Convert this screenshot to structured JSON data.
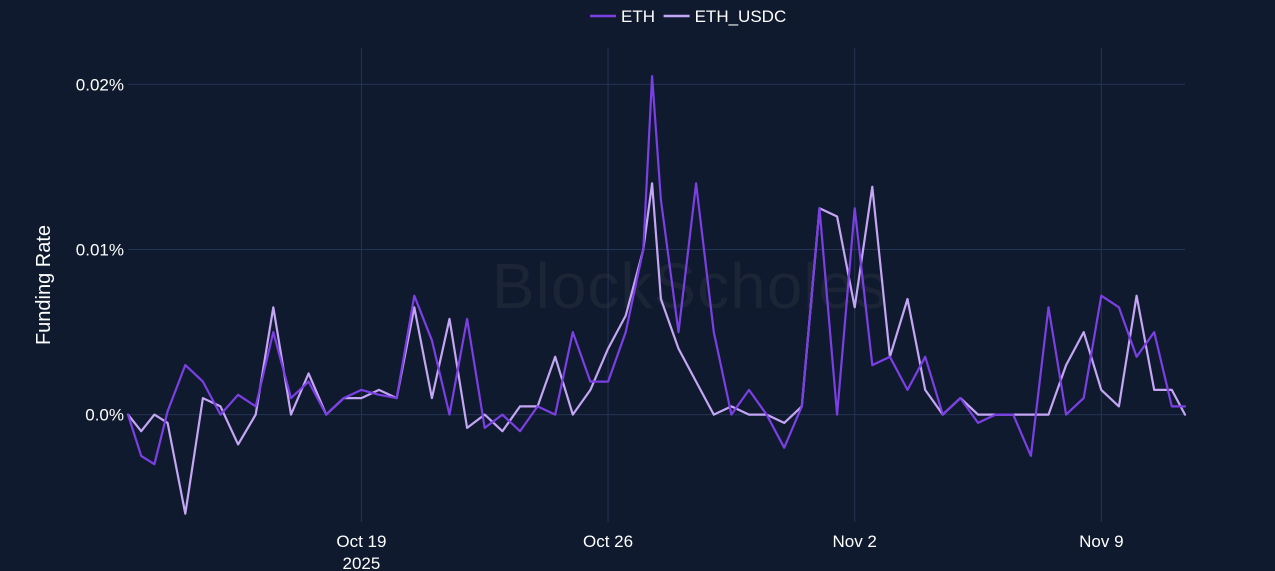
{
  "chart_data": {
    "type": "line",
    "watermark": "BlockScholes",
    "ylabel": "Funding Rate",
    "xlabel": "",
    "legend": {
      "placement": "top-center",
      "entries": [
        "ETH",
        "ETH_USDC"
      ]
    },
    "x_axis": {
      "ticks": [
        {
          "value": "2025-10-19",
          "label": "Oct 19",
          "sublabel": "2025"
        },
        {
          "value": "2025-10-26",
          "label": "Oct 26",
          "sublabel": ""
        },
        {
          "value": "2025-11-02",
          "label": "Nov 2",
          "sublabel": ""
        },
        {
          "value": "2025-11-09",
          "label": "Nov 9",
          "sublabel": ""
        }
      ],
      "range": [
        "2025-10-12T09:00",
        "2025-11-11T09:00"
      ]
    },
    "y_axis": {
      "ticks": [
        {
          "value": 0,
          "label": "0.0%"
        },
        {
          "value": 0.01,
          "label": "0.01%"
        },
        {
          "value": 0.02,
          "label": "0.02%"
        }
      ],
      "unit": "%",
      "range": [
        -0.0065,
        0.0222
      ]
    },
    "grid": true,
    "series": [
      {
        "name": "ETH",
        "color": "#7b3fe4",
        "x": [
          "2025-10-12T09:00",
          "2025-10-12T18:00",
          "2025-10-13T03:00",
          "2025-10-13T12:00",
          "2025-10-14T00:00",
          "2025-10-14T12:00",
          "2025-10-15T00:00",
          "2025-10-15T12:00",
          "2025-10-16T00:00",
          "2025-10-16T12:00",
          "2025-10-17T00:00",
          "2025-10-17T12:00",
          "2025-10-18T00:00",
          "2025-10-18T12:00",
          "2025-10-19T00:00",
          "2025-10-19T12:00",
          "2025-10-20T00:00",
          "2025-10-20T12:00",
          "2025-10-21T00:00",
          "2025-10-21T12:00",
          "2025-10-22T00:00",
          "2025-10-22T12:00",
          "2025-10-23T00:00",
          "2025-10-23T12:00",
          "2025-10-24T00:00",
          "2025-10-24T12:00",
          "2025-10-25T00:00",
          "2025-10-25T12:00",
          "2025-10-26T00:00",
          "2025-10-26T12:00",
          "2025-10-27T00:00",
          "2025-10-27T06:00",
          "2025-10-27T12:00",
          "2025-10-28T00:00",
          "2025-10-28T12:00",
          "2025-10-29T00:00",
          "2025-10-29T12:00",
          "2025-10-30T00:00",
          "2025-10-30T12:00",
          "2025-10-31T00:00",
          "2025-10-31T12:00",
          "2025-11-01T00:00",
          "2025-11-01T12:00",
          "2025-11-02T00:00",
          "2025-11-02T12:00",
          "2025-11-03T00:00",
          "2025-11-03T12:00",
          "2025-11-04T00:00",
          "2025-11-04T12:00",
          "2025-11-05T00:00",
          "2025-11-05T12:00",
          "2025-11-06T00:00",
          "2025-11-06T12:00",
          "2025-11-07T00:00",
          "2025-11-07T12:00",
          "2025-11-08T00:00",
          "2025-11-08T12:00",
          "2025-11-09T00:00",
          "2025-11-09T12:00",
          "2025-11-10T00:00",
          "2025-11-10T12:00",
          "2025-11-11T00:00",
          "2025-11-11T09:00"
        ],
        "y": [
          0.0,
          -0.0025,
          -0.003,
          0.0002,
          0.003,
          0.002,
          0.0,
          0.0012,
          0.0005,
          0.005,
          0.001,
          0.002,
          0.0,
          0.001,
          0.0015,
          0.0012,
          0.001,
          0.0072,
          0.0045,
          0.0,
          0.0058,
          -0.0008,
          0.0,
          -0.001,
          0.0005,
          0.0,
          0.005,
          0.002,
          0.002,
          0.005,
          0.01,
          0.0205,
          0.013,
          0.005,
          0.014,
          0.005,
          0.0,
          0.0015,
          0.0,
          -0.002,
          0.0005,
          0.0125,
          0.0,
          0.0125,
          0.003,
          0.0035,
          0.0015,
          0.0035,
          0.0,
          0.001,
          -0.0005,
          0.0,
          0.0,
          -0.0025,
          0.0065,
          0.0,
          0.001,
          0.0072,
          0.0065,
          0.0035,
          0.005,
          0.0005,
          0.0005
        ]
      },
      {
        "name": "ETH_USDC",
        "color": "#c4a6f5",
        "x": [
          "2025-10-12T09:00",
          "2025-10-12T18:00",
          "2025-10-13T03:00",
          "2025-10-13T12:00",
          "2025-10-14T00:00",
          "2025-10-14T12:00",
          "2025-10-15T00:00",
          "2025-10-15T12:00",
          "2025-10-16T00:00",
          "2025-10-16T12:00",
          "2025-10-17T00:00",
          "2025-10-17T12:00",
          "2025-10-18T00:00",
          "2025-10-18T12:00",
          "2025-10-19T00:00",
          "2025-10-19T12:00",
          "2025-10-20T00:00",
          "2025-10-20T12:00",
          "2025-10-21T00:00",
          "2025-10-21T12:00",
          "2025-10-22T00:00",
          "2025-10-22T12:00",
          "2025-10-23T00:00",
          "2025-10-23T12:00",
          "2025-10-24T00:00",
          "2025-10-24T12:00",
          "2025-10-25T00:00",
          "2025-10-25T12:00",
          "2025-10-26T00:00",
          "2025-10-26T12:00",
          "2025-10-27T00:00",
          "2025-10-27T06:00",
          "2025-10-27T12:00",
          "2025-10-28T00:00",
          "2025-10-28T12:00",
          "2025-10-29T00:00",
          "2025-10-29T12:00",
          "2025-10-30T00:00",
          "2025-10-30T12:00",
          "2025-10-31T00:00",
          "2025-10-31T12:00",
          "2025-11-01T00:00",
          "2025-11-01T12:00",
          "2025-11-02T00:00",
          "2025-11-02T12:00",
          "2025-11-03T00:00",
          "2025-11-03T12:00",
          "2025-11-04T00:00",
          "2025-11-04T12:00",
          "2025-11-05T00:00",
          "2025-11-05T12:00",
          "2025-11-06T00:00",
          "2025-11-06T12:00",
          "2025-11-07T00:00",
          "2025-11-07T12:00",
          "2025-11-08T00:00",
          "2025-11-08T12:00",
          "2025-11-09T00:00",
          "2025-11-09T12:00",
          "2025-11-10T00:00",
          "2025-11-10T12:00",
          "2025-11-11T00:00",
          "2025-11-11T09:00"
        ],
        "y": [
          0.0,
          -0.001,
          0.0,
          -0.0005,
          -0.006,
          0.001,
          0.0005,
          -0.0018,
          0.0,
          0.0065,
          0.0,
          0.0025,
          0.0,
          0.001,
          0.001,
          0.0015,
          0.001,
          0.0065,
          0.001,
          0.0058,
          -0.0008,
          0.0,
          -0.001,
          0.0005,
          0.0005,
          0.0035,
          0.0,
          0.0015,
          0.004,
          0.006,
          0.01,
          0.014,
          0.007,
          0.004,
          0.002,
          0.0,
          0.0005,
          0.0,
          0.0,
          -0.0005,
          0.0005,
          0.0125,
          0.012,
          0.0065,
          0.0138,
          0.0035,
          0.007,
          0.0015,
          0.0,
          0.001,
          0.0,
          0.0,
          0.0,
          0.0,
          0.0,
          0.003,
          0.005,
          0.0015,
          0.0005,
          0.0072,
          0.0015,
          0.0015,
          0.0
        ]
      }
    ]
  }
}
